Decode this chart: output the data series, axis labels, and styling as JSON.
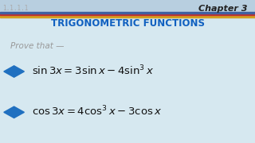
{
  "bg_color": "#d6e8f0",
  "header_bg": "#b8cfe0",
  "header_stripe_colors": [
    "#d4a020",
    "#c03030",
    "#4060a0"
  ],
  "header_text": "Chapter 3",
  "header_text_color": "#222222",
  "title_text": "TRIGONOMETRIC FUNCTIONS",
  "title_color": "#1060c0",
  "prove_text": "Prove that —",
  "prove_color": "#999999",
  "bullet_color": "#2070c0",
  "formula1": "$\\sin 3x = 3\\sin x - 4\\sin^3 x$",
  "formula2": "$\\cos 3x = 4\\cos^3 x - 3\\cos x$",
  "formula_color": "#111111",
  "left_label_color": "#aaaaaa",
  "left_text": "1.1.1.1",
  "figsize": [
    3.2,
    1.8
  ],
  "dpi": 100
}
